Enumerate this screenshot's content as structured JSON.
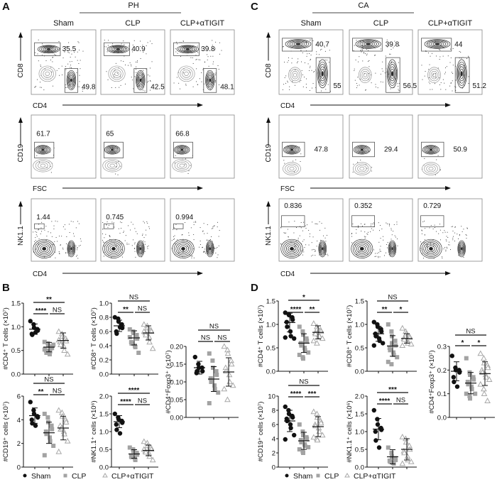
{
  "legend": {
    "sham": "Sham",
    "clp": "CLP",
    "tigit": "CLP+αTIGIT"
  },
  "colors": {
    "sham": "#111111",
    "clp": "#a3a3a3",
    "tigit": "#a8a8a8"
  },
  "flow_cytometry": {
    "A": {
      "label": "A",
      "title": "PH",
      "columns": [
        "Sham",
        "CLP",
        "CLP+αTIGIT"
      ],
      "rows": [
        {
          "y_label": "CD8",
          "x_label": "CD4",
          "values": [
            [
              "35.5",
              "49.8"
            ],
            [
              "40.9",
              "42.5"
            ],
            [
              "39.8",
              "48.1"
            ]
          ]
        },
        {
          "y_label": "CD19",
          "x_label": "FSC",
          "values": [
            [
              "61.7"
            ],
            [
              "65"
            ],
            [
              "66.8"
            ]
          ]
        },
        {
          "y_label": "NK1.1",
          "x_label": "CD4",
          "values": [
            [
              "1.44"
            ],
            [
              "0.745"
            ],
            [
              "0.994"
            ]
          ]
        }
      ]
    },
    "C": {
      "label": "C",
      "title": "CA",
      "columns": [
        "Sham",
        "CLP",
        "CLP+αTIGIT"
      ],
      "rows": [
        {
          "y_label": "CD8",
          "x_label": "CD4",
          "values": [
            [
              "40.7",
              "55"
            ],
            [
              "39.8",
              "56.5"
            ],
            [
              "44",
              "51.2"
            ]
          ]
        },
        {
          "y_label": "CD19",
          "x_label": "FSC",
          "values": [
            [
              "47.8"
            ],
            [
              "29.4"
            ],
            [
              "50.9"
            ]
          ]
        },
        {
          "y_label": "NK1.1",
          "x_label": "CD4",
          "values": [
            [
              "0.836"
            ],
            [
              "0.352"
            ],
            [
              "0.729"
            ]
          ]
        }
      ]
    }
  },
  "panel_labels": {
    "B": "B",
    "D": "D"
  },
  "chart_data": [
    {
      "panel": "B",
      "type": "scatter",
      "ylabel": "#CD4⁺ T cells (×10⁷)",
      "ylim": [
        0,
        1.5
      ],
      "yticks": [
        "0.0",
        "0.5",
        "1.0",
        "1.5"
      ],
      "groups": [
        {
          "name": "Sham",
          "values": [
            1.12,
            1.05,
            0.98,
            0.95,
            0.92,
            0.85,
            0.83,
            0.88
          ],
          "mean": 0.95,
          "sd": 0.11
        },
        {
          "name": "CLP",
          "values": [
            0.68,
            0.65,
            0.6,
            0.58,
            0.55,
            0.5,
            0.45,
            0.42,
            0.48,
            0.62,
            0.52
          ],
          "mean": 0.57,
          "sd": 0.1
        },
        {
          "name": "CLP+αTIGIT",
          "values": [
            0.9,
            0.85,
            0.8,
            0.75,
            0.7,
            0.68,
            0.62,
            0.58,
            0.5,
            0.42,
            0.72
          ],
          "mean": 0.71,
          "sd": 0.16
        }
      ],
      "comparisons": [
        {
          "pair": [
            "Sham",
            "CLP+αTIGIT"
          ],
          "label": "**"
        },
        {
          "pair": [
            "Sham",
            "CLP"
          ],
          "label": "****"
        },
        {
          "pair": [
            "CLP",
            "CLP+αTIGIT"
          ],
          "label": "NS"
        }
      ]
    },
    {
      "panel": "B",
      "type": "scatter",
      "ylabel": "#CD8⁺ T cells (×10⁷)",
      "ylim": [
        0,
        1.0
      ],
      "yticks": [
        "0.0",
        "0.2",
        "0.4",
        "0.6",
        "0.8",
        "1.0"
      ],
      "groups": [
        {
          "name": "Sham",
          "values": [
            0.8,
            0.78,
            0.74,
            0.7,
            0.65,
            0.6,
            0.57,
            0.66
          ],
          "mean": 0.68,
          "sd": 0.08
        },
        {
          "name": "CLP",
          "values": [
            0.63,
            0.6,
            0.58,
            0.55,
            0.5,
            0.45,
            0.43,
            0.4,
            0.38,
            0.3,
            0.52
          ],
          "mean": 0.51,
          "sd": 0.1
        },
        {
          "name": "CLP+αTIGIT",
          "values": [
            0.7,
            0.68,
            0.65,
            0.62,
            0.6,
            0.58,
            0.55,
            0.52,
            0.45,
            0.36,
            0.6
          ],
          "mean": 0.58,
          "sd": 0.1
        }
      ],
      "comparisons": [
        {
          "pair": [
            "Sham",
            "CLP+αTIGIT"
          ],
          "label": "NS"
        },
        {
          "pair": [
            "Sham",
            "CLP"
          ],
          "label": "**"
        },
        {
          "pair": [
            "CLP",
            "CLP+αTIGIT"
          ],
          "label": "NS"
        }
      ]
    },
    {
      "panel": "B",
      "type": "scatter",
      "ylabel": "#CD4⁺Foxp3⁺ (×10⁷)",
      "ylim": [
        0,
        0.2
      ],
      "yticks": [
        "0.00",
        "0.05",
        "0.10",
        "0.15",
        "0.20"
      ],
      "groups": [
        {
          "name": "Sham",
          "values": [
            0.17,
            0.15,
            0.14,
            0.14,
            0.13,
            0.125,
            0.13
          ],
          "mean": 0.14,
          "sd": 0.018
        },
        {
          "name": "CLP",
          "values": [
            0.18,
            0.16,
            0.14,
            0.13,
            0.12,
            0.11,
            0.1,
            0.09,
            0.08,
            0.07,
            0.04
          ],
          "mean": 0.108,
          "sd": 0.035
        },
        {
          "name": "CLP+αTIGIT",
          "values": [
            0.2,
            0.19,
            0.18,
            0.16,
            0.15,
            0.14,
            0.13,
            0.12,
            0.1,
            0.09,
            0.08,
            0.05
          ],
          "mean": 0.128,
          "sd": 0.04
        }
      ],
      "comparisons": [
        {
          "pair": [
            "Sham",
            "CLP+αTIGIT"
          ],
          "label": "NS"
        },
        {
          "pair": [
            "Sham",
            "CLP"
          ],
          "label": "NS"
        },
        {
          "pair": [
            "CLP",
            "CLP+αTIGIT"
          ],
          "label": "NS"
        }
      ]
    },
    {
      "panel": "B",
      "type": "scatter",
      "ylabel": "#CD19⁺ cells (×10⁷)",
      "ylim": [
        0,
        6
      ],
      "yticks": [
        "0",
        "2",
        "4",
        "6"
      ],
      "groups": [
        {
          "name": "Sham",
          "values": [
            5.5,
            4.8,
            4.5,
            4.3,
            4.2,
            4.0,
            3.7,
            3.5
          ],
          "mean": 4.35,
          "sd": 0.65
        },
        {
          "name": "CLP",
          "values": [
            4.5,
            4.2,
            3.8,
            3.5,
            3.2,
            3.0,
            2.8,
            2.5,
            2.2,
            1.8,
            1.0
          ],
          "mean": 2.9,
          "sd": 0.9
        },
        {
          "name": "CLP+αTIGIT",
          "values": [
            4.8,
            4.6,
            4.3,
            4.0,
            3.8,
            3.5,
            3.2,
            3.0,
            2.8,
            2.2,
            1.3,
            3.3
          ],
          "mean": 3.3,
          "sd": 1.0
        }
      ],
      "comparisons": [
        {
          "pair": [
            "Sham",
            "CLP+αTIGIT"
          ],
          "label": "NS"
        },
        {
          "pair": [
            "Sham",
            "CLP"
          ],
          "label": "**"
        },
        {
          "pair": [
            "CLP",
            "CLP+αTIGIT"
          ],
          "label": "NS"
        }
      ]
    },
    {
      "panel": "B",
      "type": "scatter",
      "ylabel": "#NK1.1⁺ cells (×10⁶)",
      "ylim": [
        0,
        2.0
      ],
      "yticks": [
        "0.0",
        "0.5",
        "1.0",
        "1.5",
        "2.0"
      ],
      "groups": [
        {
          "name": "Sham",
          "values": [
            1.5,
            1.4,
            1.35,
            1.3,
            1.25,
            1.2,
            1.05,
            0.95
          ],
          "mean": 1.28,
          "sd": 0.17
        },
        {
          "name": "CLP",
          "values": [
            0.55,
            0.5,
            0.45,
            0.4,
            0.35,
            0.3,
            0.28,
            0.25,
            0.2
          ],
          "mean": 0.37,
          "sd": 0.12
        },
        {
          "name": "CLP+αTIGIT",
          "values": [
            0.72,
            0.68,
            0.6,
            0.55,
            0.5,
            0.45,
            0.42,
            0.38,
            0.3,
            0.2,
            0.5
          ],
          "mean": 0.47,
          "sd": 0.15
        }
      ],
      "comparisons": [
        {
          "pair": [
            "Sham",
            "CLP+αTIGIT"
          ],
          "label": "****"
        },
        {
          "pair": [
            "Sham",
            "CLP"
          ],
          "label": "****"
        },
        {
          "pair": [
            "CLP",
            "CLP+αTIGIT"
          ],
          "label": "NS"
        }
      ]
    },
    {
      "panel": "D",
      "type": "scatter",
      "ylabel": "#CD4⁺ T cells (×10⁷)",
      "ylim": [
        0,
        1.5
      ],
      "yticks": [
        "0.0",
        "0.5",
        "1.0",
        "1.5"
      ],
      "groups": [
        {
          "name": "Sham",
          "values": [
            1.25,
            1.22,
            1.2,
            1.15,
            1.1,
            1.05,
            0.95,
            0.85,
            0.75,
            0.7,
            0.72
          ],
          "mean": 1.04,
          "sd": 0.2
        },
        {
          "name": "CLP",
          "values": [
            0.95,
            0.85,
            0.78,
            0.7,
            0.65,
            0.6,
            0.55,
            0.5,
            0.45,
            0.4,
            0.35,
            0.3,
            0.27
          ],
          "mean": 0.6,
          "sd": 0.2
        },
        {
          "name": "CLP+αTIGIT",
          "values": [
            1.02,
            0.95,
            0.9,
            0.88,
            0.85,
            0.82,
            0.8,
            0.78,
            0.75,
            0.7,
            0.65,
            0.6
          ],
          "mean": 0.83,
          "sd": 0.14
        }
      ],
      "comparisons": [
        {
          "pair": [
            "Sham",
            "CLP+αTIGIT"
          ],
          "label": "*"
        },
        {
          "pair": [
            "Sham",
            "CLP"
          ],
          "label": "****"
        },
        {
          "pair": [
            "CLP",
            "CLP+αTIGIT"
          ],
          "label": "**"
        }
      ]
    },
    {
      "panel": "D",
      "type": "scatter",
      "ylabel": "#CD8⁺ T cells (×10⁷)",
      "ylim": [
        0,
        1.5
      ],
      "yticks": [
        "0.0",
        "0.5",
        "1.0",
        "1.5"
      ],
      "groups": [
        {
          "name": "Sham",
          "values": [
            1.05,
            1.0,
            0.95,
            0.9,
            0.85,
            0.8,
            0.75,
            0.7,
            0.65,
            0.6,
            0.55
          ],
          "mean": 0.8,
          "sd": 0.16
        },
        {
          "name": "CLP",
          "values": [
            1.0,
            0.85,
            0.75,
            0.65,
            0.55,
            0.5,
            0.45,
            0.4,
            0.35,
            0.3,
            0.2,
            0.15,
            0.6
          ],
          "mean": 0.54,
          "sd": 0.22
        },
        {
          "name": "CLP+αTIGIT",
          "values": [
            0.92,
            0.85,
            0.8,
            0.75,
            0.72,
            0.7,
            0.68,
            0.65,
            0.6,
            0.58,
            0.55
          ],
          "mean": 0.7,
          "sd": 0.1
        }
      ],
      "comparisons": [
        {
          "pair": [
            "Sham",
            "CLP+αTIGIT"
          ],
          "label": "NS"
        },
        {
          "pair": [
            "Sham",
            "CLP"
          ],
          "label": "**"
        },
        {
          "pair": [
            "CLP",
            "CLP+αTIGIT"
          ],
          "label": "*"
        }
      ]
    },
    {
      "panel": "D",
      "type": "scatter",
      "ylabel": "#CD4⁺Foxp3⁺ (×10⁷)",
      "ylim": [
        0,
        0.3
      ],
      "yticks": [
        "0.0",
        "0.1",
        "0.2",
        "0.3"
      ],
      "groups": [
        {
          "name": "Sham",
          "values": [
            0.26,
            0.21,
            0.2,
            0.2,
            0.19,
            0.17,
            0.15,
            0.13
          ],
          "mean": 0.195,
          "sd": 0.04
        },
        {
          "name": "CLP",
          "values": [
            0.25,
            0.19,
            0.18,
            0.17,
            0.16,
            0.15,
            0.14,
            0.13,
            0.12,
            0.1,
            0.1,
            0.09,
            0.08
          ],
          "mean": 0.145,
          "sd": 0.045
        },
        {
          "name": "CLP+αTIGIT",
          "values": [
            0.27,
            0.25,
            0.23,
            0.22,
            0.21,
            0.2,
            0.19,
            0.18,
            0.17,
            0.16,
            0.14,
            0.12,
            0.1,
            0.07
          ],
          "mean": 0.185,
          "sd": 0.05
        }
      ],
      "comparisons": [
        {
          "pair": [
            "Sham",
            "CLP+αTIGIT"
          ],
          "label": "NS"
        },
        {
          "pair": [
            "Sham",
            "CLP"
          ],
          "label": "*"
        },
        {
          "pair": [
            "CLP",
            "CLP+αTIGIT"
          ],
          "label": "*"
        }
      ]
    },
    {
      "panel": "D",
      "type": "scatter",
      "ylabel": "#CD19⁺ cells (×10⁷)",
      "ylim": [
        0,
        10
      ],
      "yticks": [
        "0",
        "2",
        "4",
        "6",
        "8",
        "10"
      ],
      "groups": [
        {
          "name": "Sham",
          "values": [
            8.5,
            8.0,
            7.5,
            7.2,
            7.0,
            6.8,
            6.5,
            6.0,
            5.5,
            4.5,
            3.9
          ],
          "mean": 6.5,
          "sd": 1.5
        },
        {
          "name": "CLP",
          "values": [
            6.0,
            5.0,
            4.5,
            4.2,
            4.0,
            3.8,
            3.5,
            3.2,
            3.0,
            2.8,
            2.5,
            2.2,
            2.0
          ],
          "mean": 3.7,
          "sd": 1.2
        },
        {
          "name": "CLP+αTIGIT",
          "values": [
            7.8,
            7.5,
            7.0,
            6.5,
            6.2,
            6.0,
            5.8,
            5.5,
            5.0,
            4.5,
            4.2,
            4.0,
            3.8
          ],
          "mean": 5.7,
          "sd": 1.4
        }
      ],
      "comparisons": [
        {
          "pair": [
            "Sham",
            "CLP+αTIGIT"
          ],
          "label": "NS"
        },
        {
          "pair": [
            "Sham",
            "CLP"
          ],
          "label": "****"
        },
        {
          "pair": [
            "CLP",
            "CLP+αTIGIT"
          ],
          "label": "***"
        }
      ]
    },
    {
      "panel": "D",
      "type": "scatter",
      "ylabel": "#NK1.1⁺ cells (×10⁶)",
      "ylim": [
        0,
        2.0
      ],
      "yticks": [
        "0.0",
        "0.5",
        "1.0",
        "1.5",
        "2.0"
      ],
      "groups": [
        {
          "name": "Sham",
          "values": [
            1.6,
            1.35,
            1.2,
            1.1,
            1.05,
            1.0,
            0.75,
            0.55
          ],
          "mean": 1.07,
          "sd": 0.3
        },
        {
          "name": "CLP",
          "values": [
            0.55,
            0.4,
            0.3,
            0.25,
            0.2,
            0.18,
            0.15,
            0.12,
            0.1
          ],
          "mean": 0.29,
          "sd": 0.2
        },
        {
          "name": "CLP+αTIGIT",
          "values": [
            0.85,
            0.8,
            0.7,
            0.6,
            0.5,
            0.45,
            0.4,
            0.3,
            0.2,
            0.15,
            0.1
          ],
          "mean": 0.5,
          "sd": 0.3
        }
      ],
      "comparisons": [
        {
          "pair": [
            "Sham",
            "CLP+αTIGIT"
          ],
          "label": "***"
        },
        {
          "pair": [
            "Sham",
            "CLP"
          ],
          "label": "****"
        },
        {
          "pair": [
            "CLP",
            "CLP+αTIGIT"
          ],
          "label": "NS"
        }
      ]
    }
  ]
}
